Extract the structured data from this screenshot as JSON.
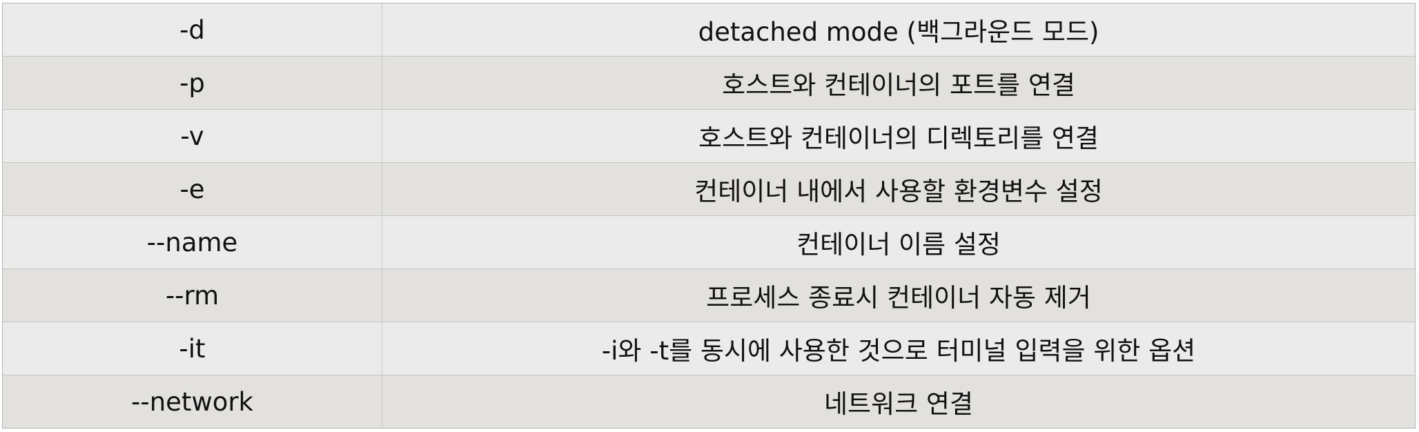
{
  "table": {
    "rows": [
      {
        "option": "-d",
        "description": "detached mode (백그라운드 모드)"
      },
      {
        "option": "-p",
        "description": "호스트와 컨테이너의 포트를 연결"
      },
      {
        "option": "-v",
        "description": "호스트와 컨테이너의 디렉토리를 연결"
      },
      {
        "option": "-e",
        "description": "컨테이너 내에서 사용할 환경변수 설정"
      },
      {
        "option": "--name",
        "description": "컨테이너 이름 설정"
      },
      {
        "option": "--rm",
        "description": "프로세스 종료시 컨테이너 자동 제거"
      },
      {
        "option": "-it",
        "description": "-i와 -t를 동시에 사용한 것으로 터미널 입력을 위한 옵션"
      },
      {
        "option": "--network",
        "description": "네트워크 연결"
      }
    ]
  }
}
